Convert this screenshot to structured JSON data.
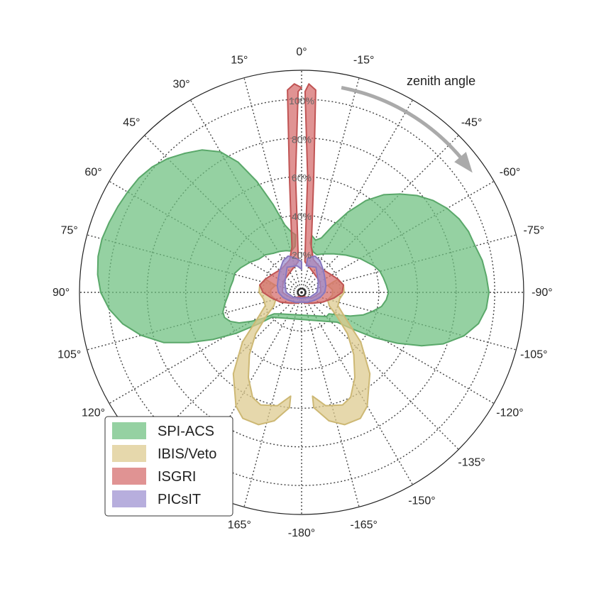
{
  "chart_data": {
    "type": "polar-area",
    "annotation": "zenith angle",
    "angle_labels": [
      {
        "deg": 0,
        "text": "0°"
      },
      {
        "deg": 15,
        "text": "15°"
      },
      {
        "deg": -15,
        "text": "-15°"
      },
      {
        "deg": 30,
        "text": "30°"
      },
      {
        "deg": -30,
        "text": ""
      },
      {
        "deg": 45,
        "text": "45°"
      },
      {
        "deg": -45,
        "text": "-45°"
      },
      {
        "deg": 60,
        "text": "60°"
      },
      {
        "deg": -60,
        "text": "-60°"
      },
      {
        "deg": 75,
        "text": "75°"
      },
      {
        "deg": -75,
        "text": "-75°"
      },
      {
        "deg": 90,
        "text": "90°"
      },
      {
        "deg": -90,
        "text": "-90°"
      },
      {
        "deg": 105,
        "text": "105°"
      },
      {
        "deg": -105,
        "text": "-105°"
      },
      {
        "deg": 120,
        "text": "120°"
      },
      {
        "deg": -120,
        "text": "-120°"
      },
      {
        "deg": 135,
        "text": ""
      },
      {
        "deg": -135,
        "text": "-135°"
      },
      {
        "deg": 150,
        "text": ""
      },
      {
        "deg": -150,
        "text": "-150°"
      },
      {
        "deg": 165,
        "text": "165°"
      },
      {
        "deg": -165,
        "text": "-165°"
      },
      {
        "deg": 180,
        "text": "-180°"
      }
    ],
    "radial_ticks": [
      {
        "value": 20,
        "text": "20%"
      },
      {
        "value": 40,
        "text": "40%"
      },
      {
        "value": 60,
        "text": "60%"
      },
      {
        "value": 80,
        "text": "80%"
      },
      {
        "value": 100,
        "text": "100%"
      }
    ],
    "r_max": 115,
    "grid": true,
    "legend": {
      "placement": "bottom-left",
      "entries": [
        {
          "label": "SPI-ACS",
          "color": "#6cbf7e"
        },
        {
          "label": "IBIS/Veto",
          "color": "#dcc98c"
        },
        {
          "label": "ISGRI",
          "color": "#d46a6a"
        },
        {
          "label": "PICsIT",
          "color": "#9b8fd0"
        }
      ]
    },
    "series": [
      {
        "name": "SPI-ACS",
        "fill": "#6cbf7e",
        "stroke": "#5aa86a",
        "outer": [
          [
            6,
            30
          ],
          [
            10,
            32
          ],
          [
            14,
            36
          ],
          [
            18,
            48
          ],
          [
            22,
            62
          ],
          [
            26,
            75
          ],
          [
            30,
            84
          ],
          [
            35,
            90
          ],
          [
            40,
            94
          ],
          [
            45,
            98
          ],
          [
            50,
            101
          ],
          [
            55,
            103
          ],
          [
            60,
            104
          ],
          [
            65,
            105
          ],
          [
            70,
            106
          ],
          [
            75,
            107
          ],
          [
            80,
            107
          ],
          [
            85,
            106
          ],
          [
            90,
            104
          ],
          [
            95,
            100
          ],
          [
            100,
            94
          ],
          [
            105,
            86
          ],
          [
            110,
            76
          ],
          [
            114,
            64
          ],
          [
            118,
            52
          ],
          [
            122,
            40
          ],
          [
            126,
            28
          ],
          [
            130,
            20
          ],
          [
            -130,
            24
          ],
          [
            -126,
            32
          ],
          [
            -122,
            44
          ],
          [
            -118,
            56
          ],
          [
            -114,
            68
          ],
          [
            -110,
            78
          ],
          [
            -105,
            87
          ],
          [
            -100,
            93
          ],
          [
            -95,
            96
          ],
          [
            -90,
            97
          ],
          [
            -85,
            96
          ],
          [
            -80,
            95
          ],
          [
            -75,
            93
          ],
          [
            -70,
            92
          ],
          [
            -65,
            90
          ],
          [
            -60,
            87
          ],
          [
            -55,
            83
          ],
          [
            -50,
            78
          ],
          [
            -45,
            72
          ],
          [
            -40,
            66
          ],
          [
            -35,
            58
          ],
          [
            -30,
            48
          ],
          [
            -25,
            38
          ],
          [
            -20,
            30
          ],
          [
            -15,
            28
          ],
          [
            -10,
            30
          ]
        ],
        "inner": [
          [
            -10,
            26
          ],
          [
            -15,
            22
          ],
          [
            -22,
            21
          ],
          [
            -30,
            23
          ],
          [
            -40,
            26
          ],
          [
            -50,
            30
          ],
          [
            -60,
            35
          ],
          [
            -70,
            40
          ],
          [
            -75,
            42
          ],
          [
            -80,
            43
          ],
          [
            -85,
            44
          ],
          [
            -90,
            45
          ],
          [
            -95,
            44
          ],
          [
            -100,
            42
          ],
          [
            -105,
            38
          ],
          [
            -110,
            34
          ],
          [
            -116,
            28
          ],
          [
            -122,
            22
          ],
          [
            -128,
            18
          ],
          [
            -134,
            18
          ],
          [
            134,
            16
          ],
          [
            128,
            18
          ],
          [
            124,
            24
          ],
          [
            120,
            30
          ],
          [
            116,
            36
          ],
          [
            112,
            40
          ],
          [
            108,
            42
          ],
          [
            104,
            42
          ],
          [
            98,
            40
          ],
          [
            92,
            38
          ],
          [
            86,
            37
          ],
          [
            80,
            36
          ],
          [
            74,
            36
          ],
          [
            68,
            34
          ],
          [
            60,
            31
          ],
          [
            52,
            28
          ],
          [
            44,
            27
          ],
          [
            36,
            25
          ],
          [
            28,
            24
          ],
          [
            20,
            23
          ],
          [
            14,
            22
          ],
          [
            8,
            24
          ]
        ]
      },
      {
        "name": "IBIS/Veto",
        "fill": "#dcc98c",
        "stroke": "#cdb874",
        "lobes": [
          {
            "outer": [
              [
                -70,
                20
              ],
              [
                -80,
                22
              ],
              [
                -90,
                22
              ],
              [
                -100,
                20
              ],
              [
                -110,
                20
              ],
              [
                -120,
                26
              ],
              [
                -130,
                40
              ],
              [
                -140,
                55
              ],
              [
                -150,
                68
              ],
              [
                -155,
                72
              ],
              [
                -162,
                72
              ],
              [
                -168,
                68
              ],
              [
                -174,
                60
              ]
            ],
            "inner": [
              [
                -174,
                54
              ],
              [
                -168,
                60
              ],
              [
                -160,
                62
              ],
              [
                -155,
                60
              ],
              [
                -148,
                52
              ],
              [
                -140,
                42
              ],
              [
                -132,
                32
              ],
              [
                -124,
                22
              ],
              [
                -116,
                16
              ],
              [
                -106,
                14
              ],
              [
                -95,
                16
              ],
              [
                -85,
                16
              ],
              [
                -75,
                14
              ]
            ]
          },
          {
            "outer": [
              [
                70,
                20
              ],
              [
                80,
                22
              ],
              [
                90,
                22
              ],
              [
                100,
                20
              ],
              [
                110,
                20
              ],
              [
                120,
                26
              ],
              [
                130,
                40
              ],
              [
                140,
                55
              ],
              [
                150,
                68
              ],
              [
                155,
                72
              ],
              [
                162,
                72
              ],
              [
                168,
                68
              ],
              [
                174,
                60
              ]
            ],
            "inner": [
              [
                174,
                54
              ],
              [
                168,
                60
              ],
              [
                160,
                62
              ],
              [
                155,
                60
              ],
              [
                148,
                52
              ],
              [
                140,
                42
              ],
              [
                132,
                32
              ],
              [
                124,
                22
              ],
              [
                116,
                16
              ],
              [
                106,
                14
              ],
              [
                95,
                16
              ],
              [
                85,
                16
              ],
              [
                75,
                14
              ]
            ]
          }
        ]
      },
      {
        "name": "ISGRI",
        "fill": "#d46a6a",
        "stroke": "#c05454",
        "outer": [
          [
            0,
            106
          ],
          [
            2,
            108
          ],
          [
            4,
            105
          ],
          [
            6,
            60
          ],
          [
            8,
            40
          ],
          [
            12,
            24
          ],
          [
            20,
            18
          ],
          [
            40,
            16
          ],
          [
            60,
            18
          ],
          [
            70,
            20
          ],
          [
            80,
            22
          ],
          [
            90,
            20
          ],
          [
            100,
            16
          ],
          [
            115,
            12
          ],
          [
            135,
            8
          ],
          [
            160,
            6
          ],
          [
            180,
            5
          ],
          [
            -160,
            6
          ],
          [
            -135,
            8
          ],
          [
            -115,
            12
          ],
          [
            -100,
            17
          ],
          [
            -90,
            21
          ],
          [
            -80,
            22
          ],
          [
            -70,
            20
          ],
          [
            -60,
            18
          ],
          [
            -40,
            16
          ],
          [
            -20,
            18
          ],
          [
            -12,
            24
          ],
          [
            -8,
            40
          ],
          [
            -6,
            60
          ],
          [
            -4,
            105
          ],
          [
            -2,
            108
          ]
        ],
        "inner": [
          [
            -1,
            104
          ],
          [
            -3,
            60
          ],
          [
            -4,
            30
          ],
          [
            -6,
            16
          ],
          [
            -30,
            12
          ],
          [
            -60,
            11
          ],
          [
            -90,
            10
          ],
          [
            -120,
            6
          ],
          [
            -180,
            2
          ],
          [
            120,
            6
          ],
          [
            90,
            10
          ],
          [
            60,
            11
          ],
          [
            30,
            12
          ],
          [
            6,
            16
          ],
          [
            4,
            30
          ],
          [
            3,
            60
          ],
          [
            1,
            104
          ]
        ]
      },
      {
        "name": "PICsIT",
        "fill": "#9b8fd0",
        "stroke": "#8878c0",
        "outer": [
          [
            0,
            16
          ],
          [
            10,
            18
          ],
          [
            20,
            20
          ],
          [
            30,
            19
          ],
          [
            45,
            16
          ],
          [
            60,
            14
          ],
          [
            75,
            13
          ],
          [
            90,
            12
          ],
          [
            105,
            10
          ],
          [
            120,
            8
          ],
          [
            150,
            6
          ],
          [
            180,
            5
          ],
          [
            -150,
            6
          ],
          [
            -120,
            8
          ],
          [
            -105,
            10
          ],
          [
            -90,
            12
          ],
          [
            -75,
            13
          ],
          [
            -60,
            14
          ],
          [
            -45,
            16
          ],
          [
            -30,
            19
          ],
          [
            -20,
            20
          ],
          [
            -10,
            18
          ]
        ],
        "inner": [
          [
            -10,
            14
          ],
          [
            -30,
            15
          ],
          [
            -60,
            10
          ],
          [
            -90,
            8
          ],
          [
            -120,
            5
          ],
          [
            -180,
            3
          ],
          [
            120,
            5
          ],
          [
            90,
            8
          ],
          [
            60,
            10
          ],
          [
            30,
            15
          ],
          [
            10,
            14
          ],
          [
            0,
            12
          ]
        ]
      }
    ]
  }
}
